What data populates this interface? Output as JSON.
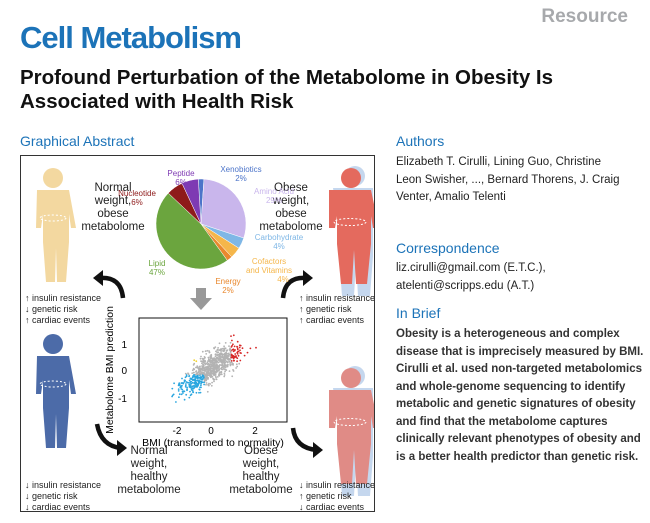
{
  "header": {
    "resource_label": "Resource",
    "journal_name": "Cell Metabolism",
    "title": "Profound Perturbation of the Metabolome in Obesity Is Associated with Health Risk"
  },
  "graphical_abstract": {
    "label": "Graphical Abstract",
    "quadrants": {
      "top_left": "Normal weight, obese metabolome",
      "top_right": "Obese weight, obese metabolome",
      "bottom_left": "Normal weight, healthy metabolome",
      "bottom_right": "Obese weight, healthy metabolome"
    },
    "risk_up": [
      "↑ insulin resistance",
      "↑ genetic risk",
      "↑ cardiac events"
    ],
    "risk_down": [
      "↓ insulin resistance",
      "↓ genetic risk",
      "↓ cardiac events"
    ],
    "scatter": {
      "xlabel": "BMI (transformed to normality)",
      "ylabel": "Metabolome BMI prediction",
      "xticks": [
        "-2",
        "0",
        "2"
      ],
      "yticks": [
        "1",
        "0",
        "-1"
      ]
    }
  },
  "chart_data": {
    "type": "pie",
    "categories": [
      "Xenobiotics",
      "Amino Acid",
      "Carbohydrate",
      "Cofactors and Vitamins",
      "Energy",
      "Lipid",
      "Nucleotide",
      "Peptide"
    ],
    "values": [
      2,
      29,
      4,
      4,
      2,
      47,
      6,
      6
    ],
    "labels": [
      "2%",
      "29%",
      "4%",
      "4%",
      "2%",
      "47%",
      "6%",
      "6%"
    ],
    "colors": [
      "#4c74c9",
      "#c9b6ec",
      "#7fb7e6",
      "#f5b64a",
      "#e9882e",
      "#6ba53e",
      "#8e1a1a",
      "#7e3ab3"
    ]
  },
  "authors": {
    "heading": "Authors",
    "text": "Elizabeth T. Cirulli, Lining Guo, Christine Leon Swisher, ..., Bernard Thorens, J. Craig Venter, Amalio Telenti"
  },
  "correspondence": {
    "heading": "Correspondence",
    "emails": [
      "liz.cirulli@gmail.com (E.T.C.),",
      "atelenti@scripps.edu (A.T.)"
    ]
  },
  "in_brief": {
    "heading": "In Brief",
    "text": "Obesity is a heterogeneous and complex disease that is imprecisely measured by BMI. Cirulli et al. used non-targeted metabolomics and whole-genome sequencing to identify metabolic and genetic signatures of obesity and find that the metabolome captures clinically relevant phenotypes of obesity and is a better health predictor than genetic risk."
  }
}
